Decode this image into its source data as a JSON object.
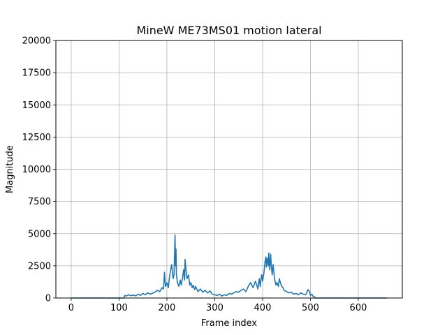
{
  "chart_data": {
    "type": "line",
    "title": "MineW ME73MS01 motion lateral",
    "xlabel": "Frame index",
    "ylabel": "Magnitude",
    "xlim": [
      -32,
      692
    ],
    "ylim": [
      0,
      20000
    ],
    "xticks": [
      0,
      100,
      200,
      300,
      400,
      500,
      600
    ],
    "yticks": [
      0,
      2500,
      5000,
      7500,
      10000,
      12500,
      15000,
      17500,
      20000
    ],
    "grid": true,
    "line_color": "#1f77b4",
    "series": [
      {
        "x": [
          0,
          110,
          112,
          115,
          120,
          125,
          130,
          135,
          140,
          145,
          150,
          155,
          160,
          165,
          170,
          175,
          180,
          185,
          190,
          193,
          195,
          197,
          200,
          203,
          205,
          208,
          210,
          213,
          215,
          217,
          218,
          219,
          220,
          222,
          225,
          228,
          230,
          233,
          235,
          237,
          238,
          240,
          242,
          245,
          248,
          250,
          253,
          255,
          258,
          260,
          265,
          270,
          275,
          280,
          285,
          290,
          295,
          300,
          305,
          310,
          315,
          320,
          325,
          330,
          335,
          340,
          345,
          350,
          355,
          360,
          365,
          370,
          375,
          380,
          385,
          388,
          390,
          393,
          395,
          398,
          400,
          403,
          405,
          407,
          408,
          410,
          412,
          413,
          415,
          417,
          418,
          420,
          422,
          425,
          428,
          430,
          433,
          435,
          438,
          440,
          443,
          445,
          450,
          455,
          460,
          465,
          470,
          475,
          480,
          485,
          490,
          495,
          498,
          500,
          503,
          505,
          508,
          510,
          520,
          560,
          600,
          660
        ],
        "y": [
          0,
          0,
          200,
          150,
          250,
          180,
          220,
          160,
          300,
          200,
          350,
          250,
          400,
          300,
          380,
          450,
          600,
          500,
          800,
          700,
          2000,
          900,
          1200,
          800,
          1500,
          2200,
          2600,
          1500,
          1800,
          4900,
          2500,
          3800,
          1800,
          1200,
          900,
          1400,
          1000,
          1600,
          2200,
          1400,
          3000,
          2200,
          1500,
          1800,
          1000,
          1200,
          800,
          1000,
          650,
          900,
          500,
          700,
          450,
          600,
          400,
          550,
          300,
          250,
          200,
          300,
          150,
          250,
          200,
          350,
          300,
          400,
          500,
          450,
          600,
          700,
          500,
          900,
          1200,
          800,
          1300,
          1000,
          700,
          1500,
          900,
          1800,
          1300,
          2000,
          2800,
          3200,
          2400,
          3100,
          2500,
          3500,
          2200,
          3400,
          2600,
          1800,
          2600,
          1500,
          1000,
          1200,
          900,
          1500,
          1100,
          900,
          800,
          600,
          500,
          400,
          450,
          300,
          350,
          250,
          400,
          300,
          250,
          650,
          500,
          200,
          300,
          150,
          100,
          0,
          0,
          0,
          0,
          0
        ]
      }
    ]
  }
}
